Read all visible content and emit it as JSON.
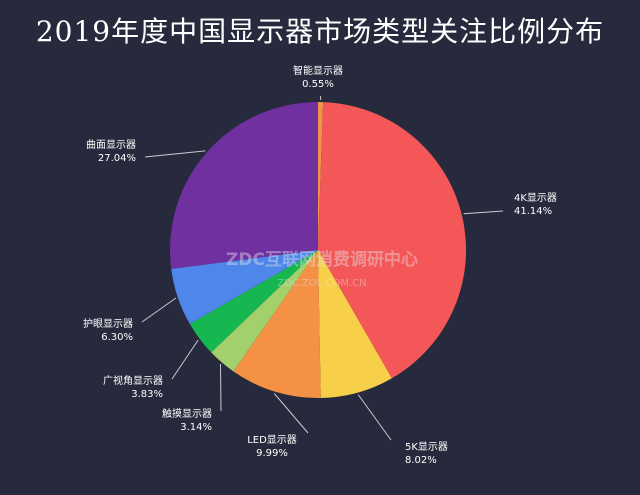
{
  "chart_data": {
    "type": "pie",
    "title": "2019年度中国显示器市场类型关注比例分布",
    "slices": [
      {
        "label": "智能显示器",
        "value": 0.55,
        "value_text": "0.55%",
        "color": "#f0944a"
      },
      {
        "label": "4K显示器",
        "value": 41.14,
        "value_text": "41.14%",
        "color": "#f45757"
      },
      {
        "label": "5K显示器",
        "value": 8.02,
        "value_text": "8.02%",
        "color": "#f7cf48"
      },
      {
        "label": "LED显示器",
        "value": 9.99,
        "value_text": "9.99%",
        "color": "#f49145"
      },
      {
        "label": "触摸显示器",
        "value": 3.14,
        "value_text": "3.14%",
        "color": "#a2d06a"
      },
      {
        "label": "广视角显示器",
        "value": 3.83,
        "value_text": "3.83%",
        "color": "#16b751"
      },
      {
        "label": "护眼显示器",
        "value": 6.3,
        "value_text": "6.30%",
        "color": "#4f86ea"
      },
      {
        "label": "曲面显示器",
        "value": 27.04,
        "value_text": "27.04%",
        "color": "#7030a0"
      }
    ],
    "legend": "none",
    "label_line_color": "#c9cbd2"
  },
  "watermark": {
    "text": "ZDC互联网消费调研中心",
    "url": "ZDC.ZOL.COM.CN"
  }
}
